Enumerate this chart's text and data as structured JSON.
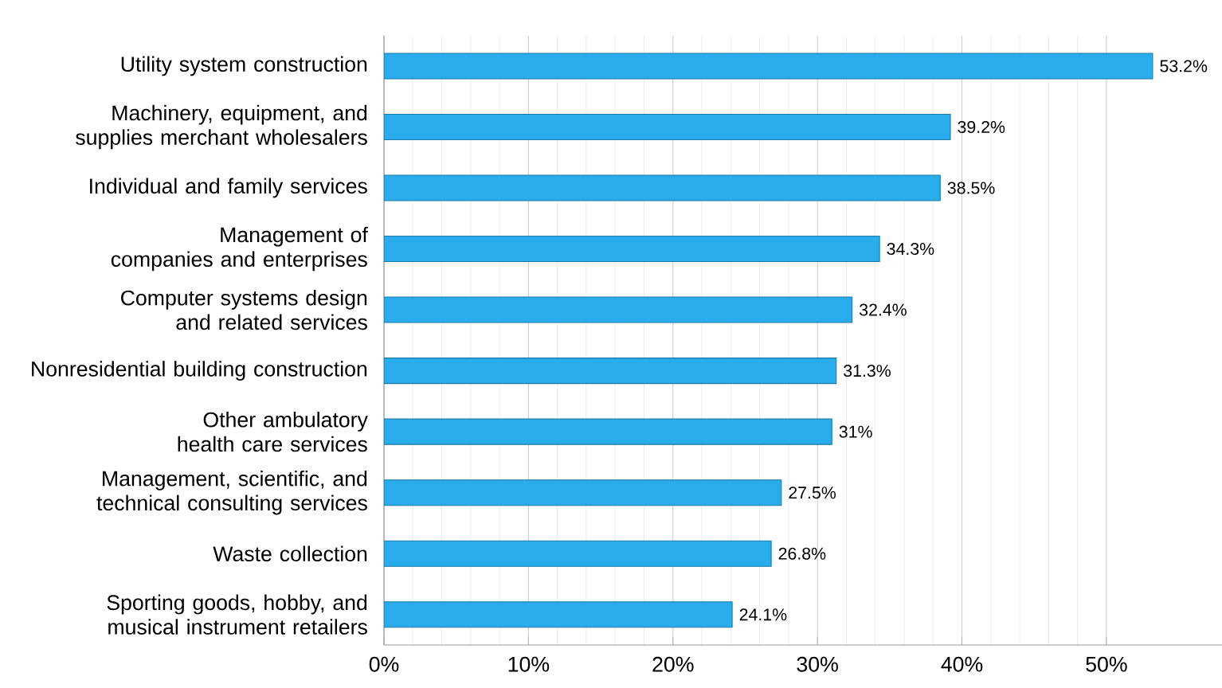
{
  "chart_data": {
    "type": "bar",
    "orientation": "horizontal",
    "categories": [
      "Utility system construction",
      "Machinery, equipment, and supplies merchant wholesalers",
      "Individual and family services",
      "Management of companies and enterprises",
      "Computer systems design and related services",
      "Nonresidential building construction",
      "Other ambulatory health care services",
      "Management, scientific, and technical consulting services",
      "Waste collection",
      "Sporting goods, hobby, and musical instrument retailers"
    ],
    "values": [
      53.2,
      39.2,
      38.5,
      34.3,
      32.4,
      31.3,
      31,
      27.5,
      26.8,
      24.1
    ],
    "value_labels": [
      "53.2%",
      "39.2%",
      "38.5%",
      "34.3%",
      "32.4%",
      "31.3%",
      "31%",
      "27.5%",
      "26.8%",
      "24.1%"
    ],
    "color": "#29acec",
    "xlim": [
      0,
      58
    ],
    "xticks": [
      {
        "value": 0,
        "label": "0%"
      },
      {
        "value": 10,
        "label": "10%"
      },
      {
        "value": 20,
        "label": "20%"
      },
      {
        "value": 30,
        "label": "30%"
      },
      {
        "value": 40,
        "label": "40%"
      },
      {
        "value": 50,
        "label": "50%"
      }
    ],
    "grid": "x"
  }
}
